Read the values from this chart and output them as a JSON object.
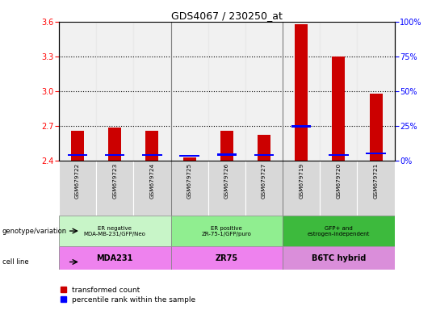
{
  "title": "GDS4067 / 230250_at",
  "samples": [
    "GSM679722",
    "GSM679723",
    "GSM679724",
    "GSM679725",
    "GSM679726",
    "GSM679727",
    "GSM679719",
    "GSM679720",
    "GSM679721"
  ],
  "red_values": [
    2.655,
    2.685,
    2.655,
    2.425,
    2.655,
    2.62,
    3.575,
    3.3,
    2.98
  ],
  "blue_values": [
    2.445,
    2.445,
    2.445,
    2.44,
    2.45,
    2.445,
    2.695,
    2.445,
    2.46
  ],
  "ylim_left": [
    2.4,
    3.6
  ],
  "yticks_left": [
    2.4,
    2.7,
    3.0,
    3.3,
    3.6
  ],
  "ylim_right": [
    0,
    100
  ],
  "yticks_right": [
    0,
    25,
    50,
    75,
    100
  ],
  "groups": [
    {
      "label": "ER negative\nMDA-MB-231/GFP/Neo",
      "start": 0,
      "end": 3,
      "color": "#c8f5c8"
    },
    {
      "label": "ER positive\nZR-75-1/GFP/puro",
      "start": 3,
      "end": 6,
      "color": "#90ee90"
    },
    {
      "label": "GFP+ and\nestrogen-independent",
      "start": 6,
      "end": 9,
      "color": "#3dba3d"
    }
  ],
  "cell_lines": [
    {
      "label": "MDA231",
      "start": 0,
      "end": 3,
      "color": "#ee82ee"
    },
    {
      "label": "ZR75",
      "start": 3,
      "end": 6,
      "color": "#ee82ee"
    },
    {
      "label": "B6TC hybrid",
      "start": 6,
      "end": 9,
      "color": "#da8eda"
    }
  ],
  "legend_red": "transformed count",
  "legend_blue": "percentile rank within the sample",
  "bar_width": 0.35,
  "base": 2.4,
  "left_label": "genotype/variation",
  "cell_label": "cell line",
  "bg_color": "#d8d8d8"
}
